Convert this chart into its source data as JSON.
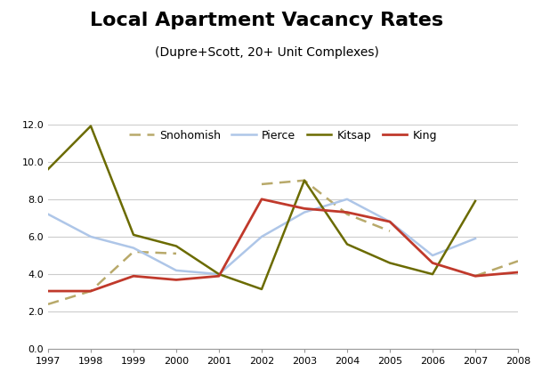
{
  "title": "Local Apartment Vacancy Rates",
  "subtitle": "(Dupre+Scott, 20+ Unit Complexes)",
  "years": [
    1997,
    1998,
    1999,
    2000,
    2001,
    2002,
    2003,
    2004,
    2005,
    2006,
    2007,
    2008
  ],
  "snohomish": [
    2.4,
    3.1,
    5.2,
    5.1,
    null,
    8.8,
    9.0,
    7.2,
    6.3,
    null,
    3.9,
    4.7
  ],
  "pierce": [
    7.2,
    6.0,
    5.4,
    4.2,
    4.0,
    6.0,
    7.3,
    8.0,
    6.8,
    5.0,
    5.9,
    null
  ],
  "kitsap": [
    9.6,
    11.9,
    6.1,
    5.5,
    4.0,
    3.2,
    9.0,
    5.6,
    4.6,
    4.0,
    7.9,
    null
  ],
  "king": [
    3.1,
    3.1,
    3.9,
    3.7,
    3.9,
    8.0,
    7.5,
    7.3,
    6.8,
    4.6,
    3.9,
    4.1
  ],
  "snohomish_color": "#b8a96a",
  "pierce_color": "#aec6e8",
  "kitsap_color": "#6b6b00",
  "king_color": "#c0392b",
  "ylim": [
    0,
    12.0
  ],
  "yticks": [
    0.0,
    2.0,
    4.0,
    6.0,
    8.0,
    10.0,
    12.0
  ],
  "bg_color": "#ffffff",
  "grid_color": "#cccccc",
  "title_fontsize": 16,
  "subtitle_fontsize": 10,
  "legend_fontsize": 9,
  "tick_fontsize": 8
}
